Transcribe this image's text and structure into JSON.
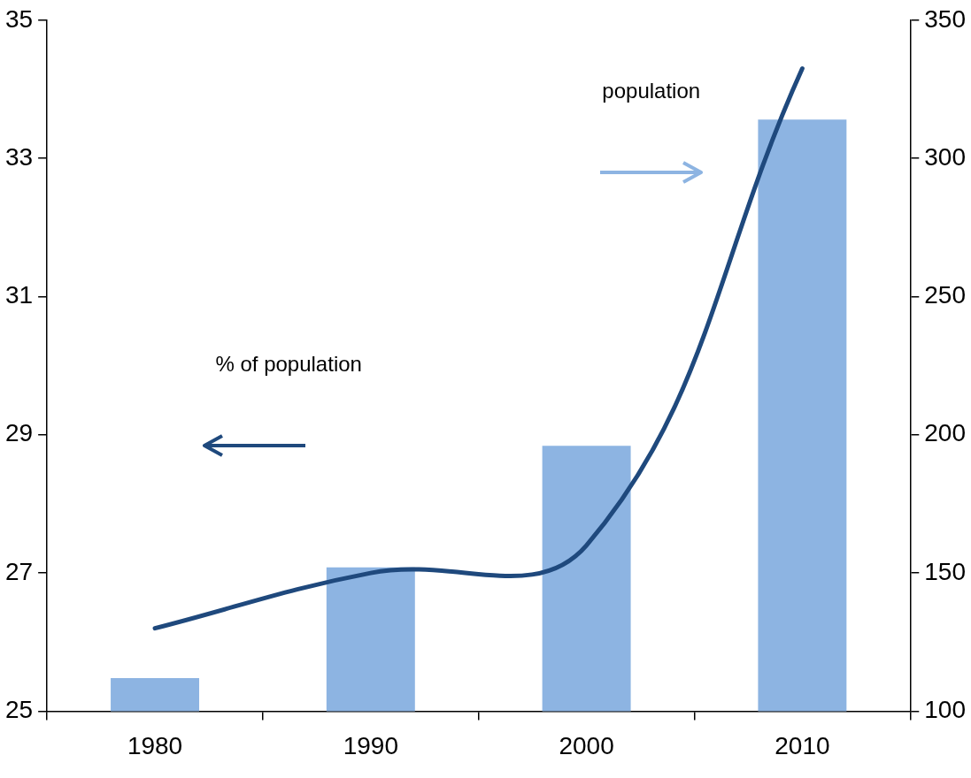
{
  "chart_data": {
    "type": "bar",
    "categories": [
      "1980",
      "1990",
      "2000",
      "2010"
    ],
    "series": [
      {
        "axis": "y2",
        "color": "#8db4e2",
        "values": [
          112,
          152,
          196,
          314
        ]
      },
      {
        "type": "line",
        "axis": "y",
        "color": "#1f497d",
        "values": [
          26.2,
          27.0,
          27.4,
          34.3
        ]
      }
    ],
    "ylim": [
      25,
      35
    ],
    "yticks": [
      25,
      27,
      29,
      31,
      33,
      35
    ],
    "y2lim": [
      100,
      350
    ],
    "y2ticks": [
      100,
      150,
      200,
      250,
      300,
      350
    ],
    "annotations": [
      "% of population",
      "population"
    ],
    "grid": false,
    "legend": false,
    "marker": "none",
    "line_style": "solid"
  }
}
